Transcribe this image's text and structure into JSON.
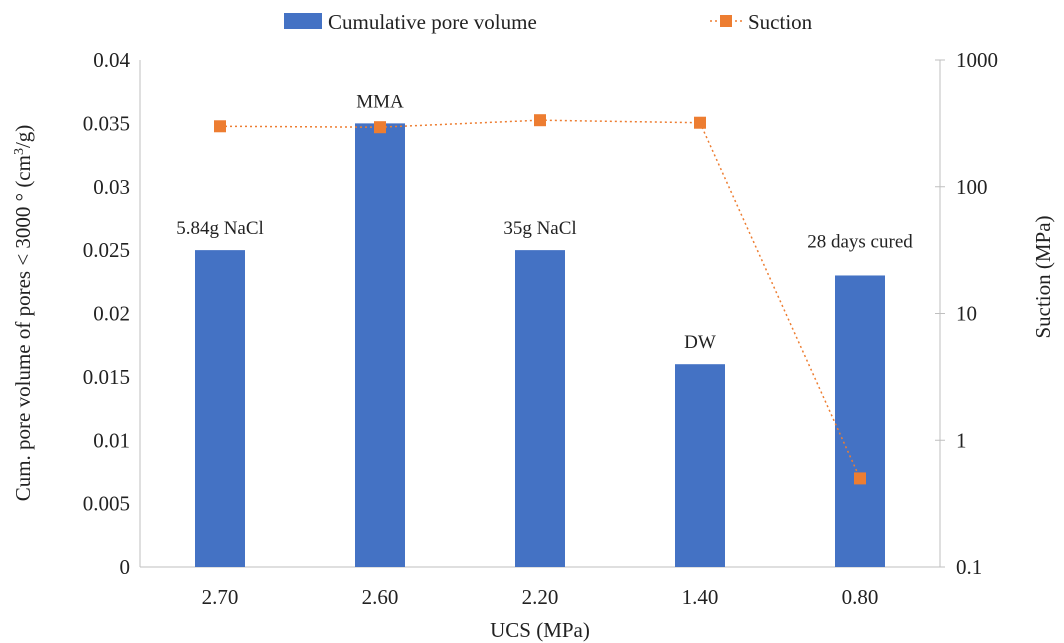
{
  "chart_data": {
    "type": "bar",
    "categories": [
      "2.70",
      "2.60",
      "2.20",
      "1.40",
      "0.80"
    ],
    "xlabel": "UCS (MPa)",
    "ylabel_left_parts": [
      "Cum. pore volume of pores < 3000 ° (cm",
      "3",
      "/g)"
    ],
    "ylabel_right": "Suction (MPa)",
    "left_axis": {
      "ylim": [
        0,
        0.04
      ],
      "ticks": [
        0,
        0.005,
        0.01,
        0.015,
        0.02,
        0.025,
        0.03,
        0.035,
        0.04
      ],
      "tick_labels": [
        "0",
        "0.005",
        "0.01",
        "0.015",
        "0.02",
        "0.025",
        "0.03",
        "0.035",
        "0.04"
      ]
    },
    "right_axis": {
      "scale": "log",
      "ylim": [
        0.1,
        1000
      ],
      "ticks": [
        0.1,
        1,
        10,
        100,
        1000
      ],
      "tick_labels": [
        "0.1",
        "1",
        "10",
        "100",
        "1000"
      ]
    },
    "series": [
      {
        "name": "Cumulative pore volume",
        "type": "bar",
        "axis": "left",
        "color": "#4472c4",
        "values": [
          0.025,
          0.035,
          0.025,
          0.016,
          0.023
        ],
        "labels": [
          "5.84g NaCl",
          "MMA",
          "35g NaCl",
          "DW",
          "28 days cured"
        ]
      },
      {
        "name": "Suction",
        "type": "line",
        "axis": "right",
        "color": "#ed7d31",
        "line_style": "dotted",
        "marker": "square",
        "values": [
          300,
          295,
          335,
          320,
          0.5
        ]
      }
    ],
    "legend": {
      "position": "top",
      "items": [
        "Cumulative pore volume",
        "Suction"
      ]
    },
    "grid": false
  }
}
